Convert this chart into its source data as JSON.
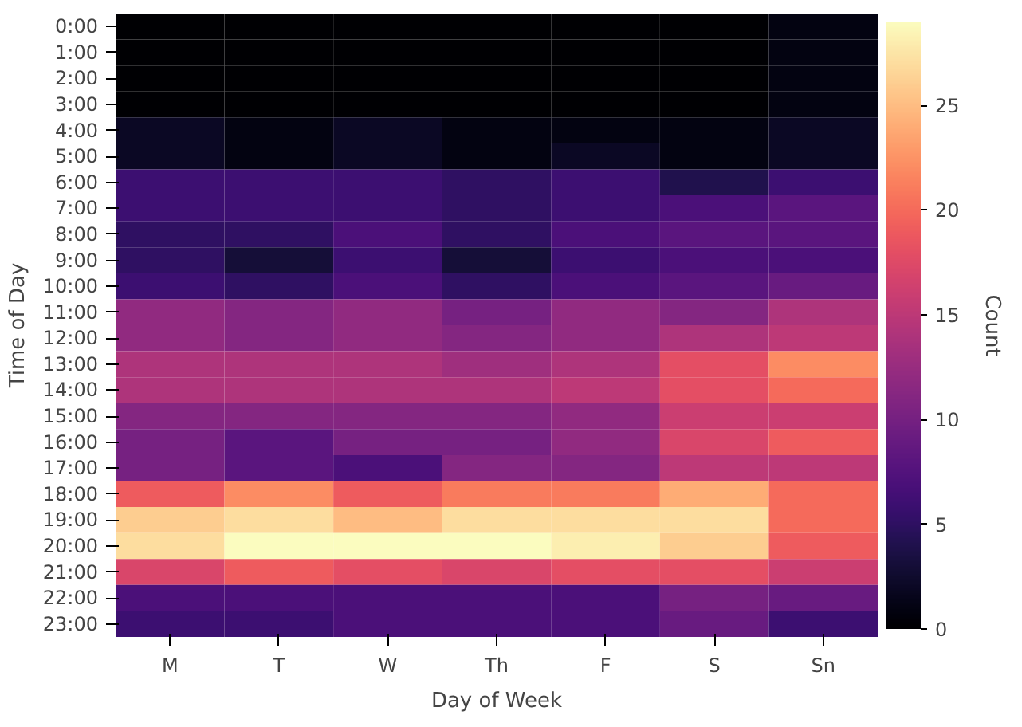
{
  "chart_data": {
    "type": "heatmap",
    "xlabel": "Day of Week",
    "ylabel": "Time of Day",
    "clabel": "Count",
    "categories": [
      "M",
      "T",
      "W",
      "Th",
      "F",
      "S",
      "Sn"
    ],
    "y_categories": [
      "0:00",
      "1:00",
      "2:00",
      "3:00",
      "4:00",
      "5:00",
      "6:00",
      "7:00",
      "8:00",
      "9:00",
      "10:00",
      "11:00",
      "12:00",
      "13:00",
      "14:00",
      "15:00",
      "16:00",
      "17:00",
      "18:00",
      "19:00",
      "20:00",
      "21:00",
      "22:00",
      "23:00"
    ],
    "cells": [
      [
        0,
        0,
        0,
        0,
        0,
        0,
        1
      ],
      [
        0,
        0,
        0,
        0,
        0,
        0,
        1
      ],
      [
        0,
        0,
        0,
        0,
        0,
        0,
        1
      ],
      [
        0,
        0,
        0,
        0,
        0,
        0,
        1
      ],
      [
        2,
        1,
        2,
        1,
        1,
        1,
        2
      ],
      [
        2,
        1,
        2,
        1,
        2,
        1,
        2
      ],
      [
        6,
        6,
        6,
        5,
        6,
        4,
        6
      ],
      [
        6,
        6,
        6,
        5,
        6,
        7,
        8
      ],
      [
        5,
        5,
        7,
        5,
        7,
        8,
        8
      ],
      [
        5,
        3,
        6,
        3,
        6,
        7,
        7
      ],
      [
        6,
        5,
        7,
        5,
        7,
        8,
        9
      ],
      [
        12,
        11,
        12,
        10,
        12,
        11,
        14
      ],
      [
        12,
        11,
        12,
        11,
        12,
        14,
        15
      ],
      [
        14,
        14,
        14,
        13,
        14,
        18,
        22
      ],
      [
        14,
        14,
        14,
        14,
        15,
        18,
        20
      ],
      [
        11,
        11,
        11,
        11,
        12,
        16,
        16
      ],
      [
        10,
        8,
        10,
        10,
        12,
        17,
        19
      ],
      [
        10,
        8,
        7,
        11,
        11,
        15,
        15
      ],
      [
        19,
        22,
        19,
        21,
        21,
        24,
        20
      ],
      [
        26,
        27,
        25,
        27,
        27,
        27,
        20
      ],
      [
        27,
        29,
        29,
        29,
        28,
        26,
        19
      ],
      [
        17,
        19,
        18,
        17,
        18,
        18,
        16
      ],
      [
        7,
        7,
        7,
        7,
        7,
        10,
        9
      ],
      [
        6,
        6,
        7,
        7,
        7,
        9,
        6
      ]
    ],
    "clim": [
      0,
      29
    ],
    "cticks": [
      0,
      5,
      10,
      15,
      20,
      25
    ]
  }
}
